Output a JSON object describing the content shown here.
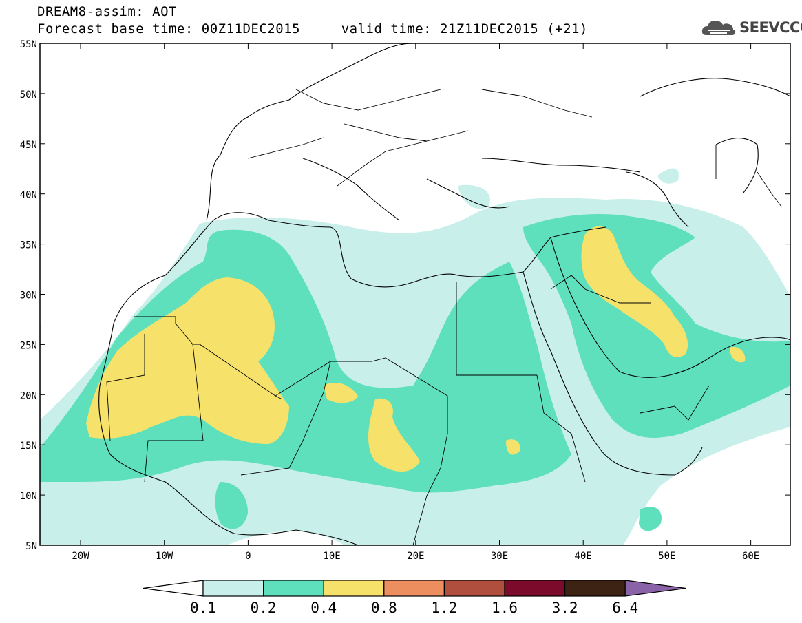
{
  "header": {
    "title_line1": "DREAM8-assim: AOT",
    "title_line2": "Forecast base time: 00Z11DEC2015     valid time: 21Z11DEC2015 (+21)"
  },
  "logo": {
    "text": "SEEVCCC",
    "icon": "cloud-icon"
  },
  "map": {
    "lat_labels": [
      "55N",
      "50N",
      "45N",
      "40N",
      "35N",
      "30N",
      "25N",
      "20N",
      "15N",
      "10N",
      "5N"
    ],
    "lon_labels": [
      "20W",
      "10W",
      "0",
      "10E",
      "20E",
      "30E",
      "40E",
      "50E",
      "60E"
    ]
  },
  "legend": {
    "levels": [
      "0.1",
      "0.2",
      "0.4",
      "0.8",
      "1.2",
      "1.6",
      "3.2",
      "6.4"
    ],
    "colors": [
      "#ffffff",
      "#c9efea",
      "#5de0bb",
      "#f6e26b",
      "#ec8e5e",
      "#b04f3d",
      "#7c0a2a",
      "#3d2314",
      "#8a62a8"
    ]
  }
}
